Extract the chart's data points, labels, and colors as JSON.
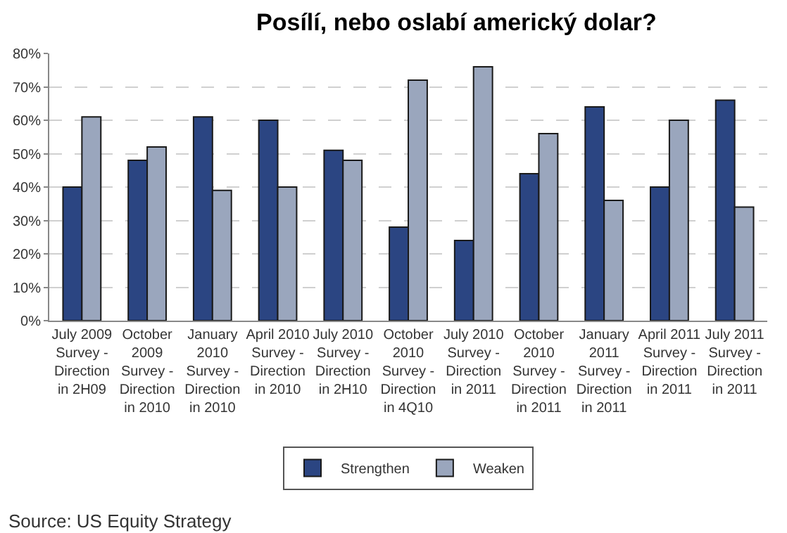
{
  "chart_data": {
    "type": "bar",
    "title": "Posílí, nebo oslabí americký dolar?",
    "categories": [
      "July 2009 Survey - Direction in 2H09",
      "October 2009 Survey - Direction in 2010",
      "January 2010 Survey - Direction in 2010",
      "April 2010 Survey - Direction in 2010",
      "July 2010 Survey - Direction in 2H10",
      "October 2010 Survey - Direction in 4Q10",
      "July 2010 Survey - Direction in 2011",
      "October 2010 Survey - Direction in 2011",
      "January 2011 Survey - Direction in 2011",
      "April 2011 Survey - Direction in 2011",
      "July 2011 Survey - Direction in 2011"
    ],
    "series": [
      {
        "name": "Strengthen",
        "color": "#2b4582",
        "values": [
          40,
          48,
          61,
          60,
          51,
          28,
          24,
          44,
          64,
          40,
          66
        ]
      },
      {
        "name": "Weaken",
        "color": "#9aa6bd",
        "values": [
          61,
          52,
          39,
          40,
          48,
          72,
          76,
          56,
          36,
          60,
          34
        ]
      }
    ],
    "ylim": [
      0,
      80
    ],
    "yticks": [
      {
        "value": 0,
        "label": "0%"
      },
      {
        "value": 10,
        "label": "10%"
      },
      {
        "value": 20,
        "label": "20%"
      },
      {
        "value": 30,
        "label": "30%"
      },
      {
        "value": 40,
        "label": "40%"
      },
      {
        "value": 50,
        "label": "50%"
      },
      {
        "value": 60,
        "label": "60%"
      },
      {
        "value": 70,
        "label": "70%"
      },
      {
        "value": 80,
        "label": "80%"
      }
    ],
    "grid": "y",
    "legend": "bottom",
    "annotations": [
      "Source: US Equity Strategy"
    ]
  }
}
